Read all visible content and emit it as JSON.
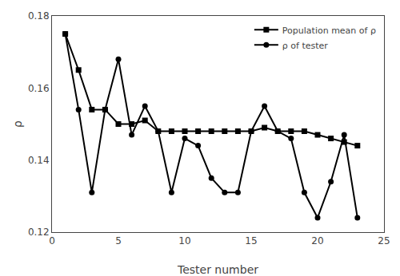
{
  "chart_data": {
    "type": "line",
    "x": [
      1,
      2,
      3,
      4,
      5,
      6,
      7,
      8,
      9,
      10,
      11,
      12,
      13,
      14,
      15,
      16,
      17,
      18,
      19,
      20,
      21,
      22,
      23
    ],
    "series": [
      {
        "name": "Population mean of ρ",
        "color": "black",
        "marker": "square",
        "line_style": "solid",
        "values": [
          0.175,
          0.165,
          0.154,
          0.154,
          0.15,
          0.15,
          0.151,
          0.148,
          0.148,
          0.148,
          0.148,
          0.148,
          0.148,
          0.148,
          0.148,
          0.149,
          0.148,
          0.148,
          0.148,
          0.147,
          0.146,
          0.145,
          0.144
        ]
      },
      {
        "name": "ρ of tester",
        "color": "black",
        "marker": "circle",
        "line_style": "solid",
        "values": [
          0.175,
          0.154,
          0.131,
          0.154,
          0.168,
          0.147,
          0.155,
          0.148,
          0.131,
          0.146,
          0.144,
          0.135,
          0.131,
          0.131,
          0.148,
          0.155,
          0.148,
          0.146,
          0.131,
          0.124,
          0.134,
          0.147,
          0.124
        ]
      }
    ],
    "xlabel": "Tester number",
    "ylabel": "ρ",
    "xlim": [
      0,
      25
    ],
    "ylim": [
      0.12,
      0.18
    ],
    "xticks": [
      0,
      5,
      10,
      15,
      20,
      25
    ],
    "yticks": [
      0.12,
      0.14,
      0.16,
      0.18
    ],
    "grid": false,
    "legend": "upper right"
  }
}
